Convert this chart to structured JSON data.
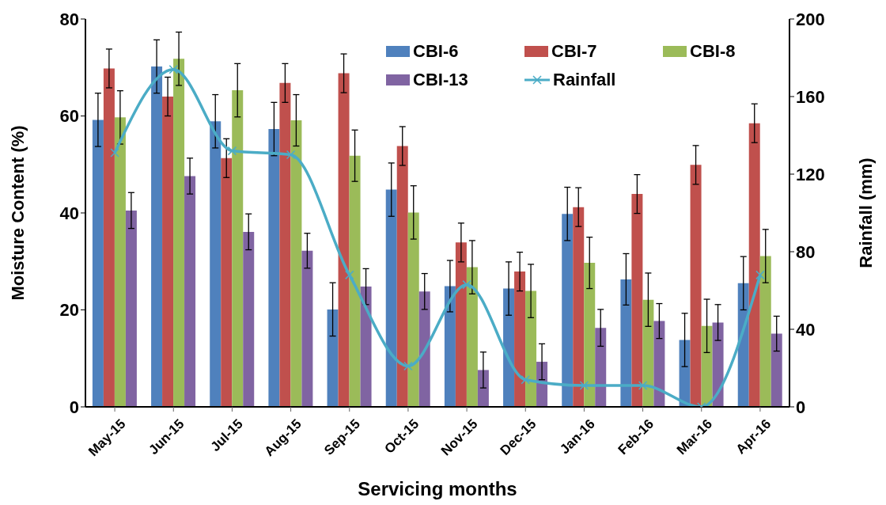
{
  "chart_data": {
    "type": "bar",
    "xlabel": "Servicing months",
    "ylabel": "Moisture Content (%)",
    "y2label": "Rainfall (mm)",
    "categories": [
      "May-15",
      "Jun-15",
      "Jul-15",
      "Aug-15",
      "Sep-15",
      "Oct-15",
      "Nov-15",
      "Dec-15",
      "Jan-16",
      "Feb-16",
      "Mar-16",
      "Apr-16"
    ],
    "series": [
      {
        "name": "CBI-6",
        "color": "#4f81bd",
        "values": [
          59.2,
          70.2,
          58.9,
          57.3,
          20.1,
          44.8,
          24.9,
          24.4,
          39.8,
          26.3,
          13.8,
          25.5
        ],
        "errors": [
          5.5,
          5.5,
          5.5,
          5.5,
          5.5,
          5.5,
          5.3,
          5.5,
          5.5,
          5.3,
          5.5,
          5.5
        ]
      },
      {
        "name": "CBI-7",
        "color": "#c0504d",
        "values": [
          69.8,
          64.0,
          51.3,
          66.8,
          68.8,
          53.8,
          33.9,
          27.9,
          41.2,
          43.9,
          49.9,
          58.5
        ],
        "errors": [
          4,
          4,
          4,
          4,
          4,
          4,
          4,
          4,
          4,
          4,
          4,
          4
        ]
      },
      {
        "name": "CBI-8",
        "color": "#9bbb59",
        "values": [
          59.7,
          71.8,
          65.3,
          59.1,
          51.8,
          40.1,
          28.8,
          23.9,
          29.7,
          22.1,
          16.7,
          31.1
        ],
        "errors": [
          5.5,
          5.5,
          5.5,
          5.3,
          5.3,
          5.5,
          5.5,
          5.5,
          5.3,
          5.5,
          5.5,
          5.5
        ]
      },
      {
        "name": "CBI-13",
        "color": "#8064a2",
        "values": [
          40.5,
          47.6,
          36.1,
          32.2,
          24.8,
          23.8,
          7.6,
          9.3,
          16.3,
          17.7,
          17.4,
          15.1
        ],
        "errors": [
          3.7,
          3.7,
          3.7,
          3.6,
          3.7,
          3.7,
          3.7,
          3.7,
          3.8,
          3.6,
          3.7,
          3.6
        ]
      },
      {
        "name": "Rainfall",
        "type": "line",
        "axis": "y2",
        "color": "#4bacc6",
        "marker": "cross",
        "values": [
          131,
          174,
          132,
          130,
          68,
          21,
          63,
          14,
          11,
          11,
          0,
          68
        ]
      }
    ],
    "ylim": [
      0,
      80
    ],
    "yticks": [
      0,
      20,
      40,
      60,
      80
    ],
    "y2lim": [
      0,
      200
    ],
    "y2ticks": [
      0,
      40,
      80,
      120,
      160,
      200
    ],
    "legend": "top right"
  }
}
